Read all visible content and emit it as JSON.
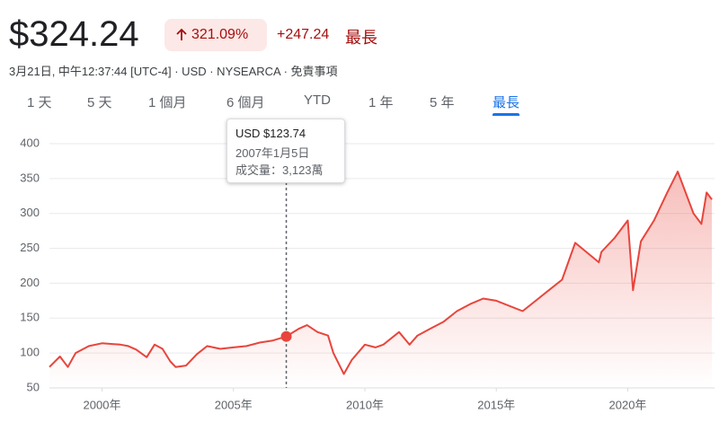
{
  "header": {
    "price": "$324.24",
    "change_percent": "321.09%",
    "change": "+247.24",
    "range_label": "最長",
    "subline": "3月21日, 中午12:37:44 [UTC-4] · USD · NYSEARCA · 免責事項"
  },
  "tabs": [
    "1 天",
    "5 天",
    "1 個月",
    "6 個月",
    "YTD",
    "1 年",
    "5 年",
    "最長"
  ],
  "active_tab": 7,
  "chart_data": {
    "type": "line",
    "color": "#e8453c",
    "x": [
      1998.0,
      1998.4,
      1998.7,
      1999.0,
      1999.5,
      2000.0,
      2000.7,
      2001.0,
      2001.3,
      2001.7,
      2002.0,
      2002.3,
      2002.6,
      2002.8,
      2003.2,
      2003.6,
      2004.0,
      2004.5,
      2005.0,
      2005.5,
      2006.0,
      2006.5,
      2007.01,
      2007.5,
      2007.8,
      2008.2,
      2008.6,
      2008.8,
      2009.2,
      2009.5,
      2010.0,
      2010.4,
      2010.7,
      2011.3,
      2011.7,
      2012.0,
      2012.5,
      2013.0,
      2013.5,
      2014.0,
      2014.5,
      2015.0,
      2016.0,
      2016.5,
      2017.0,
      2017.5,
      2018.0,
      2018.9,
      2019.0,
      2019.5,
      2020.0,
      2020.2,
      2020.5,
      2021.0,
      2021.5,
      2021.9,
      2022.5,
      2022.8,
      2023.0,
      2023.2
    ],
    "values": [
      80,
      95,
      80,
      100,
      110,
      114,
      112,
      110,
      105,
      94,
      112,
      106,
      88,
      80,
      82,
      98,
      110,
      106,
      108,
      110,
      115,
      118,
      123.74,
      135,
      140,
      130,
      125,
      100,
      70,
      90,
      112,
      108,
      112,
      130,
      112,
      125,
      135,
      145,
      160,
      170,
      178,
      175,
      160,
      175,
      190,
      205,
      258,
      230,
      245,
      265,
      290,
      190,
      260,
      290,
      330,
      360,
      300,
      285,
      330,
      320
    ],
    "xlim": [
      1998.0,
      2023.3
    ],
    "ylim": [
      50,
      400
    ],
    "xticks": [
      {
        "value": 2000,
        "label": "2000年"
      },
      {
        "value": 2005,
        "label": "2005年"
      },
      {
        "value": 2010,
        "label": "2010年"
      },
      {
        "value": 2015,
        "label": "2015年"
      },
      {
        "value": 2020,
        "label": "2020年"
      }
    ],
    "yticks": [
      50,
      100,
      150,
      200,
      250,
      300,
      350,
      400
    ],
    "grid": true,
    "tooltip": {
      "point": 22,
      "price": "USD $123.74",
      "date": "2007年1月5日",
      "volume": "成交量：3,123萬"
    }
  }
}
